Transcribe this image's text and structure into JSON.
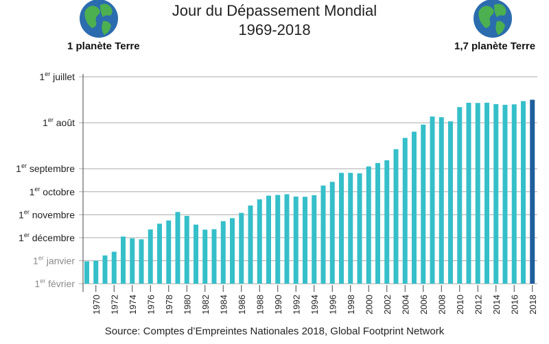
{
  "header": {
    "title": "Jour du Dépassement Mondial",
    "subtitle": "1969-2018",
    "left_globe_label": "1 planète Terre",
    "right_globe_label": "1,7 planète Terre"
  },
  "footer": {
    "source": "Source: Comptes d’Empreintes Nationales 2018, Global Footprint Network"
  },
  "icons": [
    "globe-icon"
  ],
  "colors": {
    "bar": "#35bfc9",
    "bar_highlight": "#1f5f9c",
    "grid": "#aaaaaa",
    "ocean": "#2b6cae",
    "land": "#4caf50"
  },
  "chart_data": {
    "type": "bar",
    "title": "Jour du Dépassement Mondial",
    "subtitle": "1969-2018",
    "categories": [
      "1969",
      "1970",
      "1971",
      "1972",
      "1973",
      "1974",
      "1975",
      "1976",
      "1977",
      "1978",
      "1979",
      "1980",
      "1981",
      "1982",
      "1983",
      "1984",
      "1985",
      "1986",
      "1987",
      "1988",
      "1989",
      "1990",
      "1991",
      "1992",
      "1993",
      "1994",
      "1995",
      "1996",
      "1997",
      "1998",
      "1999",
      "2000",
      "2001",
      "2002",
      "2003",
      "2004",
      "2005",
      "2006",
      "2007",
      "2008",
      "2009",
      "2010",
      "2011",
      "2012",
      "2013",
      "2014",
      "2015",
      "2016",
      "2017",
      "2018"
    ],
    "x_tick_labels": [
      "1970",
      "1972",
      "1974",
      "1976",
      "1978",
      "1980",
      "1982",
      "1984",
      "1986",
      "1988",
      "1990",
      "1992",
      "1994",
      "1996",
      "1998",
      "2000",
      "2002",
      "2004",
      "2006",
      "2008",
      "2010",
      "2012",
      "2014",
      "2016",
      "2018"
    ],
    "values_in_months_from_feb1": [
      0.97,
      1.0,
      1.23,
      1.39,
      2.05,
      1.97,
      1.93,
      2.36,
      2.61,
      2.75,
      3.12,
      2.95,
      2.57,
      2.35,
      2.37,
      2.72,
      2.85,
      3.08,
      3.4,
      3.67,
      3.83,
      3.86,
      3.89,
      3.79,
      3.78,
      3.85,
      4.27,
      4.43,
      4.82,
      4.82,
      4.8,
      5.1,
      5.25,
      5.37,
      5.85,
      6.34,
      6.61,
      6.92,
      7.27,
      7.24,
      7.06,
      7.68,
      7.87,
      7.86,
      7.87,
      7.81,
      7.78,
      7.8,
      7.94,
      8.0
    ],
    "highlight_index": 49,
    "y_ticks": [
      {
        "sup": "er",
        "rest": " février",
        "value": 0,
        "grey": true
      },
      {
        "sup": "er",
        "rest": " janvier",
        "value": 1,
        "grey": true
      },
      {
        "sup": "er",
        "rest": " décembre",
        "value": 2,
        "grey": false
      },
      {
        "sup": "er",
        "rest": " novembre",
        "value": 3,
        "grey": false
      },
      {
        "sup": "er",
        "rest": " octobre",
        "value": 4,
        "grey": false
      },
      {
        "sup": "er",
        "rest": " septembre",
        "value": 5,
        "grey": false
      },
      {
        "sup": "er",
        "rest": " août",
        "value": 7,
        "grey": false
      },
      {
        "sup": "er",
        "rest": " juillet",
        "value": 9,
        "grey": false
      }
    ],
    "ylim": [
      0,
      9
    ],
    "grid": true
  }
}
